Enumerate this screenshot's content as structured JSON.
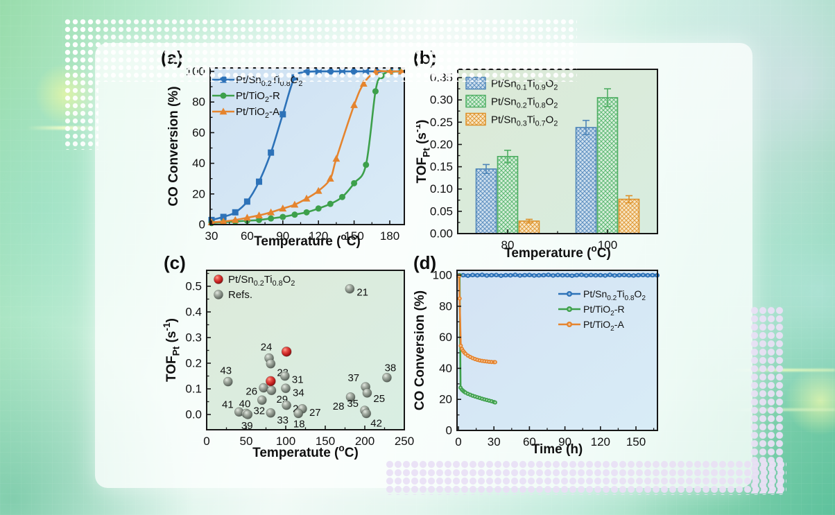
{
  "figure": {
    "panel_labels": [
      "(a)",
      "(b)",
      "(c)",
      "(d)"
    ]
  },
  "chart_data": [
    {
      "id": "a",
      "panel_label": "(a)",
      "type": "line",
      "xlabel": "Temperature (^{o}C)",
      "ylabel": "CO Conversion (%)",
      "xticks": [
        30,
        60,
        90,
        120,
        150,
        180
      ],
      "yticks": [
        0,
        20,
        40,
        60,
        80,
        100
      ],
      "xlim": [
        28,
        192
      ],
      "ylim": [
        -2,
        102
      ],
      "legend_position": "top-left",
      "plot_bg": [
        "#cfe1f2",
        "#d9ebf7"
      ],
      "series": [
        {
          "name": "Pt/Sn_{0.2}Ti_{0.8}O_{2}",
          "color": "#2d72b8",
          "marker": "square",
          "x": [
            30,
            40,
            50,
            60,
            70,
            80,
            90,
            100,
            110,
            120,
            130,
            140,
            150,
            160,
            170,
            180,
            190
          ],
          "y": [
            3,
            5,
            8,
            15,
            28,
            47,
            72,
            96,
            99.5,
            100,
            100,
            100,
            100,
            100,
            100,
            100,
            100
          ]
        },
        {
          "name": "Pt/TiO_{2}-R",
          "color": "#3da04b",
          "marker": "circle",
          "x": [
            30,
            40,
            50,
            60,
            70,
            80,
            90,
            100,
            110,
            120,
            130,
            140,
            150,
            160,
            168,
            173,
            180,
            190
          ],
          "y": [
            1,
            1.5,
            2,
            2.5,
            3,
            4,
            5,
            6.5,
            8,
            10.5,
            13.5,
            18,
            27,
            39,
            87,
            97,
            99.5,
            100
          ]
        },
        {
          "name": "Pt/TiO_{2}-A",
          "color": "#e5842e",
          "marker": "triangle",
          "x": [
            30,
            40,
            50,
            60,
            70,
            80,
            90,
            100,
            110,
            120,
            130,
            135,
            150,
            158,
            168,
            180,
            190
          ],
          "y": [
            1.5,
            2,
            3,
            4.5,
            6,
            8,
            10.5,
            13,
            17,
            22,
            30,
            43,
            78,
            92,
            99.5,
            100,
            100
          ]
        }
      ]
    },
    {
      "id": "b",
      "panel_label": "(b)",
      "type": "bar",
      "xlabel": "Temperature (^{o}C)",
      "ylabel": "TOF_{Pt} (s^{-1})",
      "categories": [
        "80",
        "100"
      ],
      "yticks": [
        0,
        0.05,
        0.1,
        0.15,
        0.2,
        0.25,
        0.3,
        0.35
      ],
      "ylim": [
        0,
        0.37
      ],
      "legend_position": "top-left",
      "plot_bg": [
        "#dcead7",
        "#d8ecdf"
      ],
      "series": [
        {
          "name": "Pt/Sn_{0.1}Ti_{0.9}O_{2}",
          "color": "#4f86b8",
          "hatch": "#5d8fc0",
          "tint": "#cfe0ee",
          "values": [
            0.145,
            0.238
          ],
          "errors": [
            0.01,
            0.016
          ]
        },
        {
          "name": "Pt/Sn_{0.2}Ti_{0.8}O_{2}",
          "color": "#4fae63",
          "hatch": "#5cb872",
          "tint": "#d9efdc",
          "values": [
            0.173,
            0.305
          ],
          "errors": [
            0.014,
            0.02
          ]
        },
        {
          "name": "Pt/Sn_{0.3}Ti_{0.7}O_{2}",
          "color": "#dd9028",
          "hatch": "#e09a3a",
          "tint": "#f8e7c6",
          "values": [
            0.028,
            0.077
          ],
          "errors": [
            0.004,
            0.008
          ]
        }
      ]
    },
    {
      "id": "c",
      "panel_label": "(c)",
      "type": "scatter",
      "xlabel": "Temperatute (^{o}C)",
      "ylabel": "TOF_{Pt} (s^{-1})",
      "xticks": [
        0,
        50,
        100,
        150,
        200,
        250
      ],
      "yticks": [
        0,
        0.1,
        0.2,
        0.3,
        0.4,
        0.5
      ],
      "xlim": [
        0,
        250
      ],
      "ylim": [
        -0.05,
        0.56
      ],
      "legend_position": "top-left",
      "plot_bg": [
        "#ddeada",
        "#d9eee3"
      ],
      "series": [
        {
          "name": "Pt/Sn_{0.2}Ti_{0.8}O_{2}",
          "color": "#c62828",
          "kind": "red",
          "points": [
            {
              "x": 101,
              "y": 0.245
            },
            {
              "x": 81,
              "y": 0.13
            }
          ]
        },
        {
          "name": "Refs.",
          "color": "#7c857c",
          "kind": "gray",
          "points": [
            {
              "x": 181,
              "y": 0.49,
              "label": "21",
              "dx": 10,
              "dy": 5
            },
            {
              "x": 79,
              "y": 0.22,
              "label": "24",
              "dx": -4,
              "dy": -11
            },
            {
              "x": 81,
              "y": 0.198,
              "label": "23",
              "dx": 9,
              "dy": 13
            },
            {
              "x": 99,
              "y": 0.15,
              "label": "31",
              "dx": 10,
              "dy": 5
            },
            {
              "x": 27,
              "y": 0.128,
              "label": "43",
              "dx": -3,
              "dy": -11
            },
            {
              "x": 228,
              "y": 0.144,
              "label": "38",
              "dx": 5,
              "dy": -9
            },
            {
              "x": 72,
              "y": 0.104,
              "label": "26",
              "dx": -9,
              "dy": 5
            },
            {
              "x": 82,
              "y": 0.094,
              "label": "29",
              "dx": 7,
              "dy": 13
            },
            {
              "x": 100,
              "y": 0.102,
              "label": "34",
              "dx": 10,
              "dy": 6
            },
            {
              "x": 201,
              "y": 0.108,
              "label": "37",
              "dx": -9,
              "dy": -8
            },
            {
              "x": 203,
              "y": 0.084,
              "label": "25",
              "dx": 9,
              "dy": 8
            },
            {
              "x": 182,
              "y": 0.068,
              "label": "28",
              "dx": -9,
              "dy": 13
            },
            {
              "x": 70,
              "y": 0.056,
              "label": "32",
              "dx": -4,
              "dy": 15
            },
            {
              "x": 101,
              "y": 0.036,
              "label": "20",
              "dx": 9,
              "dy": 5
            },
            {
              "x": 121,
              "y": 0.022,
              "label": "27",
              "dx": 10,
              "dy": 5
            },
            {
              "x": 41,
              "y": 0.01,
              "label": "41",
              "dx": -8,
              "dy": -6
            },
            {
              "x": 50,
              "y": 0.004,
              "label": "40",
              "dx": -2,
              "dy": -9
            },
            {
              "x": 52,
              "y": 0.0,
              "label": "39",
              "dx": -1,
              "dy": 16
            },
            {
              "x": 81,
              "y": 0.006,
              "label": "33",
              "dx": 9,
              "dy": 10
            },
            {
              "x": 116,
              "y": 0.004,
              "label": "18",
              "dx": 1,
              "dy": 15
            },
            {
              "x": 200,
              "y": 0.016,
              "label": "35",
              "dx": -9,
              "dy": -5
            },
            {
              "x": 202,
              "y": 0.004,
              "label": "42",
              "dx": 6,
              "dy": 14
            }
          ]
        }
      ]
    },
    {
      "id": "d",
      "panel_label": "(d)",
      "type": "line",
      "xlabel": "Time (h)",
      "ylabel": "CO Conversion (%)",
      "xticks": [
        0,
        30,
        60,
        90,
        120,
        150
      ],
      "yticks": [
        0,
        20,
        40,
        60,
        80,
        100
      ],
      "xlim": [
        0,
        168
      ],
      "ylim": [
        -2,
        103
      ],
      "legend_position": "middle-right",
      "plot_bg": [
        "#d4e3f4",
        "#d8ecf6"
      ],
      "series": [
        {
          "name": "Pt/Sn_{0.2}Ti_{0.8}O_{2}",
          "color": "#2d72b8",
          "marker": "dot",
          "x": [
            0,
            4,
            8,
            12,
            16,
            20,
            24,
            28,
            32,
            36,
            40,
            44,
            48,
            52,
            56,
            60,
            64,
            68,
            72,
            76,
            80,
            84,
            88,
            92,
            96,
            100,
            104,
            108,
            112,
            116,
            120,
            124,
            128,
            132,
            136,
            140,
            144,
            148,
            152,
            156,
            160,
            164,
            168
          ],
          "y": [
            99.8,
            100,
            99.7,
            100.1,
            99.9,
            100.2,
            99.8,
            100,
            100.1,
            99.7,
            100,
            99.9,
            100.2,
            99.8,
            100,
            100.1,
            99.8,
            99.9,
            100,
            100.2,
            99.8,
            100.1,
            99.9,
            100,
            99.7,
            100,
            100.2,
            99.8,
            100.1,
            99.9,
            100,
            99.8,
            100.2,
            99.8,
            100,
            100.1,
            99.9,
            99.8,
            100,
            100.1,
            99.9,
            100,
            99.9
          ]
        },
        {
          "name": "Pt/TiO_{2}-R",
          "color": "#3da04b",
          "marker": "dot",
          "x": [
            1,
            1.8,
            3,
            4,
            5,
            6,
            8,
            10,
            12,
            14,
            16,
            18,
            20,
            22,
            24,
            26,
            28,
            30,
            31
          ],
          "y": [
            100,
            27.5,
            26.2,
            25.5,
            24.9,
            24.4,
            23.6,
            23,
            22.4,
            21.9,
            21.4,
            20.9,
            20.4,
            20,
            19.6,
            19.2,
            18.8,
            18.3,
            18
          ]
        },
        {
          "name": "Pt/TiO_{2}-A",
          "color": "#e5842e",
          "marker": "dot",
          "x": [
            0.5,
            1,
            2,
            3,
            4,
            5,
            6,
            8,
            10,
            12,
            14,
            16,
            18,
            20,
            22,
            24,
            26,
            28,
            30,
            31
          ],
          "y": [
            99.5,
            85,
            54.5,
            52.5,
            51.2,
            50.2,
            49.4,
            48.2,
            47.3,
            46.6,
            46,
            45.5,
            45.1,
            44.8,
            44.6,
            44.4,
            44.2,
            44.1,
            44,
            44
          ]
        }
      ]
    }
  ]
}
